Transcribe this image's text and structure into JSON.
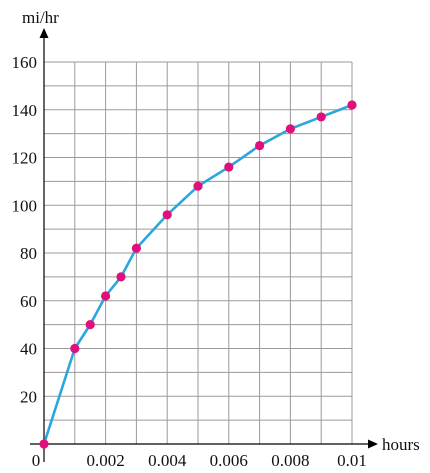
{
  "chart_data": {
    "type": "line",
    "title": "",
    "xlabel": "hours",
    "ylabel": "mi/hr",
    "xlim": [
      0,
      0.01
    ],
    "ylim": [
      0,
      160
    ],
    "grid": true,
    "x_ticks": [
      0,
      0.002,
      0.004,
      0.006,
      0.008,
      0.01
    ],
    "x_tick_labels": [
      "0",
      "0.002",
      "0.004",
      "0.006",
      "0.008",
      "0.01"
    ],
    "y_ticks": [
      20,
      40,
      60,
      80,
      100,
      120,
      140,
      160
    ],
    "y_tick_labels": [
      "20",
      "40",
      "60",
      "80",
      "100",
      "120",
      "140",
      "160"
    ],
    "x_grid_step": 0.001,
    "y_grid_step": 10,
    "series": [
      {
        "x": [
          0,
          0.001,
          0.0015,
          0.002,
          0.0025,
          0.003,
          0.004,
          0.005,
          0.006,
          0.007,
          0.008,
          0.009,
          0.01
        ],
        "y": [
          0,
          40,
          50,
          62,
          70,
          82,
          96,
          108,
          116,
          125,
          132,
          137,
          142
        ]
      }
    ],
    "line_color": "#2aa7dc",
    "marker_color": "#e0107a"
  }
}
